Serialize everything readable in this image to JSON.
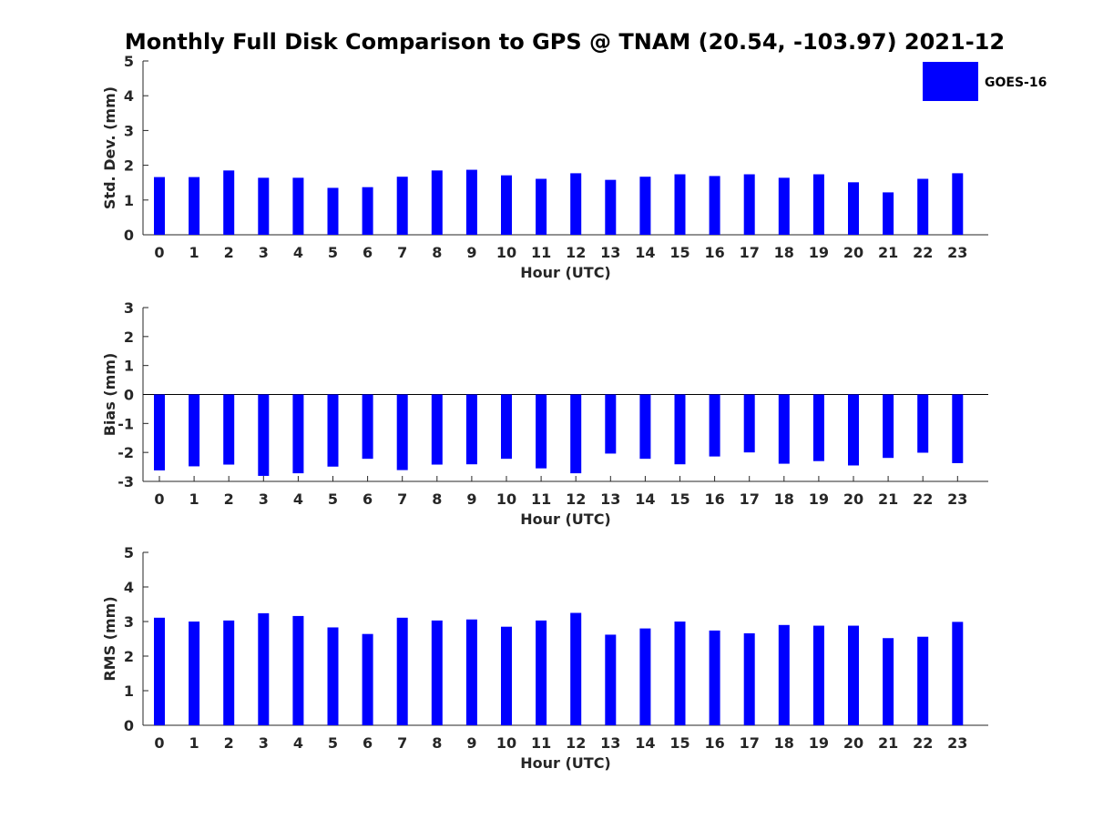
{
  "title": "Monthly Full Disk Comparison to GPS @ TNAM (20.54, -103.97) 2021-12",
  "legend": {
    "label": "GOES-16",
    "color": "#0000ff",
    "placement": "top-right"
  },
  "chart_data": [
    {
      "type": "bar",
      "xlabel": "Hour (UTC)",
      "ylabel": "Std. Dev. (mm)",
      "ylim": [
        0,
        5
      ],
      "yticks": [
        "0",
        "1",
        "2",
        "3",
        "4",
        "5"
      ],
      "categories": [
        "0",
        "1",
        "2",
        "3",
        "4",
        "5",
        "6",
        "7",
        "8",
        "9",
        "10",
        "11",
        "12",
        "13",
        "14",
        "15",
        "16",
        "17",
        "18",
        "19",
        "20",
        "21",
        "22",
        "23"
      ],
      "series": [
        {
          "name": "GOES-16",
          "color": "#0000ff",
          "values": [
            1.66,
            1.66,
            1.85,
            1.64,
            1.64,
            1.35,
            1.37,
            1.67,
            1.85,
            1.87,
            1.71,
            1.61,
            1.77,
            1.58,
            1.67,
            1.74,
            1.69,
            1.74,
            1.64,
            1.74,
            1.51,
            1.22,
            1.61,
            1.77
          ]
        }
      ]
    },
    {
      "type": "bar",
      "xlabel": "Hour (UTC)",
      "ylabel": "Bias (mm)",
      "ylim": [
        -3,
        3
      ],
      "yticks": [
        "-3",
        "-2",
        "-1",
        "0",
        "1",
        "2",
        "3"
      ],
      "categories": [
        "0",
        "1",
        "2",
        "3",
        "4",
        "5",
        "6",
        "7",
        "8",
        "9",
        "10",
        "11",
        "12",
        "13",
        "14",
        "15",
        "16",
        "17",
        "18",
        "19",
        "20",
        "21",
        "22",
        "23"
      ],
      "series": [
        {
          "name": "GOES-16",
          "color": "#0000ff",
          "values": [
            -2.62,
            -2.48,
            -2.42,
            -2.81,
            -2.72,
            -2.49,
            -2.22,
            -2.61,
            -2.42,
            -2.41,
            -2.22,
            -2.55,
            -2.72,
            -2.04,
            -2.22,
            -2.41,
            -2.14,
            -2.0,
            -2.39,
            -2.3,
            -2.45,
            -2.19,
            -2.01,
            -2.37
          ]
        }
      ]
    },
    {
      "type": "bar",
      "xlabel": "Hour (UTC)",
      "ylabel": "RMS (mm)",
      "ylim": [
        0,
        5
      ],
      "yticks": [
        "0",
        "1",
        "2",
        "3",
        "4",
        "5"
      ],
      "categories": [
        "0",
        "1",
        "2",
        "3",
        "4",
        "5",
        "6",
        "7",
        "8",
        "9",
        "10",
        "11",
        "12",
        "13",
        "14",
        "15",
        "16",
        "17",
        "18",
        "19",
        "20",
        "21",
        "22",
        "23"
      ],
      "series": [
        {
          "name": "GOES-16",
          "color": "#0000ff",
          "values": [
            3.11,
            3.0,
            3.03,
            3.24,
            3.16,
            2.83,
            2.64,
            3.11,
            3.03,
            3.06,
            2.85,
            3.03,
            3.25,
            2.62,
            2.8,
            3.0,
            2.74,
            2.66,
            2.9,
            2.88,
            2.88,
            2.52,
            2.56,
            2.99
          ]
        }
      ]
    }
  ]
}
